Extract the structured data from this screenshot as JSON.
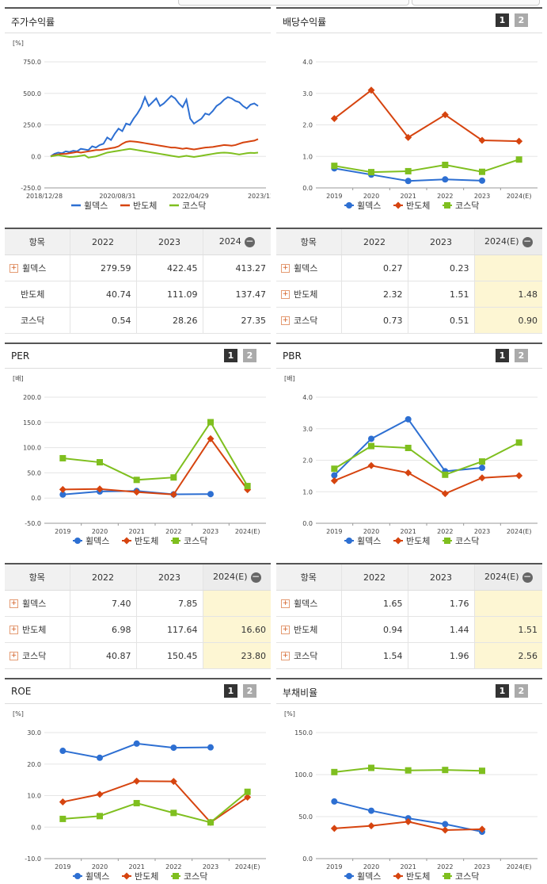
{
  "page_numbers": [
    "1",
    "2"
  ],
  "legend_names": [
    "휠덱스",
    "반도체",
    "코스닥"
  ],
  "colors": {
    "s1": "#2d6fd2",
    "s2": "#d6440f",
    "s3": "#7fbf1f"
  },
  "panels": {
    "stock": {
      "title": "주가수익률"
    },
    "dividend": {
      "title": "배당수익률"
    },
    "per": {
      "title": "PER"
    },
    "pbr": {
      "title": "PBR"
    },
    "roe": {
      "title": "ROE"
    },
    "debt": {
      "title": "부채비율"
    }
  },
  "tables": {
    "stock": {
      "header": [
        "항목",
        "2022",
        "2023",
        "2024"
      ],
      "rows": [
        {
          "name": "휠덱스",
          "v": [
            "279.59",
            "422.45",
            "413.27"
          ]
        },
        {
          "name": "반도체",
          "v": [
            "40.74",
            "111.09",
            "137.47"
          ]
        },
        {
          "name": "코스닥",
          "v": [
            "0.54",
            "28.26",
            "27.35"
          ]
        }
      ]
    },
    "dividend": {
      "header": [
        "항목",
        "2022",
        "2023",
        "2024(E)"
      ],
      "rows": [
        {
          "name": "휠덱스",
          "v": [
            "0.27",
            "0.23",
            ""
          ]
        },
        {
          "name": "반도체",
          "v": [
            "2.32",
            "1.51",
            "1.48"
          ]
        },
        {
          "name": "코스닥",
          "v": [
            "0.73",
            "0.51",
            "0.90"
          ]
        }
      ]
    },
    "per": {
      "header": [
        "항목",
        "2022",
        "2023",
        "2024(E)"
      ],
      "rows": [
        {
          "name": "휠덱스",
          "v": [
            "7.40",
            "7.85",
            ""
          ]
        },
        {
          "name": "반도체",
          "v": [
            "6.98",
            "117.64",
            "16.60"
          ]
        },
        {
          "name": "코스닥",
          "v": [
            "40.87",
            "150.45",
            "23.80"
          ]
        }
      ]
    },
    "pbr": {
      "header": [
        "항목",
        "2022",
        "2023",
        "2024(E)"
      ],
      "rows": [
        {
          "name": "휠덱스",
          "v": [
            "1.65",
            "1.76",
            ""
          ]
        },
        {
          "name": "반도체",
          "v": [
            "0.94",
            "1.44",
            "1.51"
          ]
        },
        {
          "name": "코스닥",
          "v": [
            "1.54",
            "1.96",
            "2.56"
          ]
        }
      ]
    }
  },
  "chart_data": [
    {
      "id": "stock",
      "type": "line",
      "unit": "[%]",
      "ylim": [
        -250,
        750
      ],
      "yticks": [
        "750.0",
        "500.0",
        "250.0",
        "0.0",
        "-250.0"
      ],
      "xlabels": [
        "2018/12/28",
        "2020/08/31",
        "2022/04/29",
        "2023/12/28"
      ],
      "series": [
        {
          "name": "휠덱스",
          "values": [
            0,
            20,
            30,
            25,
            40,
            35,
            45,
            40,
            60,
            55,
            50,
            80,
            70,
            90,
            100,
            150,
            130,
            180,
            220,
            200,
            260,
            250,
            300,
            340,
            390,
            470,
            400,
            430,
            460,
            400,
            420,
            450,
            480,
            460,
            420,
            390,
            450,
            300,
            260,
            280,
            300,
            340,
            330,
            360,
            400,
            420,
            450,
            470,
            460,
            440,
            430,
            400,
            380,
            410,
            420,
            400
          ]
        },
        {
          "name": "반도체",
          "values": [
            0,
            10,
            15,
            20,
            20,
            25,
            30,
            35,
            30,
            35,
            40,
            45,
            50,
            50,
            55,
            60,
            65,
            70,
            80,
            100,
            115,
            120,
            118,
            115,
            110,
            105,
            100,
            95,
            90,
            85,
            80,
            75,
            70,
            70,
            65,
            60,
            65,
            60,
            55,
            60,
            65,
            70,
            72,
            75,
            80,
            85,
            90,
            88,
            85,
            90,
            100,
            110,
            115,
            120,
            125,
            137
          ]
        },
        {
          "name": "코스닥",
          "values": [
            0,
            5,
            10,
            5,
            0,
            -5,
            -3,
            0,
            5,
            10,
            -10,
            -5,
            0,
            10,
            20,
            30,
            35,
            40,
            45,
            50,
            55,
            60,
            55,
            50,
            45,
            40,
            35,
            30,
            25,
            20,
            15,
            10,
            5,
            0,
            -5,
            0,
            5,
            0,
            -5,
            0,
            5,
            10,
            15,
            20,
            25,
            28,
            30,
            28,
            25,
            20,
            15,
            20,
            25,
            28,
            27,
            30
          ]
        }
      ]
    },
    {
      "id": "dividend",
      "type": "line",
      "unit": "",
      "ylim": [
        0,
        4
      ],
      "yticks": [
        "4.0",
        "3.0",
        "2.0",
        "1.0",
        "0.0"
      ],
      "categories": [
        "2019",
        "2020",
        "2021",
        "2022",
        "2023",
        "2024(E)"
      ],
      "series": [
        {
          "name": "휠덱스",
          "values": [
            0.62,
            0.42,
            0.22,
            0.27,
            0.23,
            null
          ]
        },
        {
          "name": "반도체",
          "values": [
            2.2,
            3.1,
            1.6,
            2.32,
            1.51,
            1.48
          ]
        },
        {
          "name": "코스닥",
          "values": [
            0.7,
            0.5,
            0.53,
            0.73,
            0.51,
            0.9
          ]
        }
      ]
    },
    {
      "id": "per",
      "type": "line",
      "unit": "[배]",
      "ylim": [
        -50,
        200
      ],
      "yticks": [
        "200.0",
        "150.0",
        "100.0",
        "50.0",
        "0.0",
        "-50.0"
      ],
      "categories": [
        "2019",
        "2020",
        "2021",
        "2022",
        "2023",
        "2024(E)"
      ],
      "series": [
        {
          "name": "휠덱스",
          "values": [
            7,
            13,
            14,
            7.4,
            7.85,
            null
          ]
        },
        {
          "name": "반도체",
          "values": [
            17,
            18,
            12,
            6.98,
            117.64,
            16.6
          ]
        },
        {
          "name": "코스닥",
          "values": [
            79,
            71,
            36,
            40.87,
            150.45,
            23.8
          ]
        }
      ]
    },
    {
      "id": "pbr",
      "type": "line",
      "unit": "[배]",
      "ylim": [
        0,
        4
      ],
      "yticks": [
        "4.0",
        "3.0",
        "2.0",
        "1.0",
        "0.0"
      ],
      "categories": [
        "2019",
        "2020",
        "2021",
        "2022",
        "2023",
        "2024(E)"
      ],
      "series": [
        {
          "name": "휠덱스",
          "values": [
            1.52,
            2.68,
            3.3,
            1.65,
            1.76,
            null
          ]
        },
        {
          "name": "반도체",
          "values": [
            1.35,
            1.83,
            1.6,
            0.94,
            1.44,
            1.51
          ]
        },
        {
          "name": "코스닥",
          "values": [
            1.73,
            2.45,
            2.39,
            1.54,
            1.96,
            2.56
          ]
        }
      ]
    },
    {
      "id": "roe",
      "type": "line",
      "unit": "[%]",
      "ylim": [
        -10,
        30
      ],
      "yticks": [
        "30.0",
        "20.0",
        "10.0",
        "0.0",
        "-10.0"
      ],
      "categories": [
        "2019",
        "2020",
        "2021",
        "2022",
        "2023",
        "2024(E)"
      ],
      "series": [
        {
          "name": "휠덱스",
          "values": [
            24.2,
            22,
            26.5,
            25.2,
            25.3,
            null
          ]
        },
        {
          "name": "반도체",
          "values": [
            8,
            10.4,
            14.6,
            14.5,
            1.5,
            9.5
          ]
        },
        {
          "name": "코스닥",
          "values": [
            2.6,
            3.5,
            7.6,
            4.5,
            1.5,
            11.2
          ]
        }
      ]
    },
    {
      "id": "debt",
      "type": "line",
      "unit": "[%]",
      "ylim": [
        0,
        150
      ],
      "yticks": [
        "150.0",
        "100.0",
        "50.0",
        "0.0"
      ],
      "categories": [
        "2019",
        "2020",
        "2021",
        "2022",
        "2023",
        "2024(E)"
      ],
      "series": [
        {
          "name": "휠덱스",
          "values": [
            68,
            57,
            48,
            41,
            32,
            null
          ]
        },
        {
          "name": "반도체",
          "values": [
            36,
            39,
            44,
            34,
            35,
            null
          ]
        },
        {
          "name": "코스닥",
          "values": [
            103,
            108,
            105,
            105.5,
            104.5,
            null
          ]
        }
      ]
    }
  ]
}
